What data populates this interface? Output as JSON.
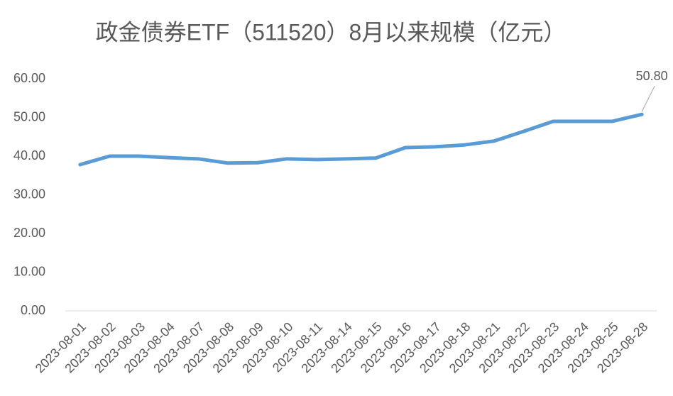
{
  "chart_data": {
    "type": "line",
    "title": "政金债券ETF（511520）8月以来规模（亿元）",
    "categories": [
      "2023-08-01",
      "2023-08-02",
      "2023-08-03",
      "2023-08-04",
      "2023-08-07",
      "2023-08-08",
      "2023-08-09",
      "2023-08-10",
      "2023-08-11",
      "2023-08-14",
      "2023-08-15",
      "2023-08-16",
      "2023-08-17",
      "2023-08-18",
      "2023-08-21",
      "2023-08-22",
      "2023-08-23",
      "2023-08-24",
      "2023-08-25",
      "2023-08-28"
    ],
    "values": [
      37.8,
      40.0,
      40.0,
      39.6,
      39.3,
      38.2,
      38.3,
      39.3,
      39.1,
      39.3,
      39.5,
      42.2,
      42.4,
      42.9,
      43.9,
      46.4,
      49.0,
      49.0,
      49.0,
      50.8
    ],
    "value_labels": [
      null,
      null,
      null,
      null,
      null,
      null,
      null,
      null,
      null,
      null,
      null,
      null,
      null,
      null,
      null,
      null,
      null,
      null,
      null,
      "50.80"
    ],
    "color": "#5b9bd5",
    "ylim": [
      0,
      60
    ],
    "yticks": [
      {
        "value": 0,
        "label": "0.00"
      },
      {
        "value": 10,
        "label": "10.00"
      },
      {
        "value": 20,
        "label": "20.00"
      },
      {
        "value": 30,
        "label": "30.00"
      },
      {
        "value": 40,
        "label": "40.00"
      },
      {
        "value": 50,
        "label": "50.00"
      },
      {
        "value": 60,
        "label": "60.00"
      }
    ],
    "grid": false
  }
}
